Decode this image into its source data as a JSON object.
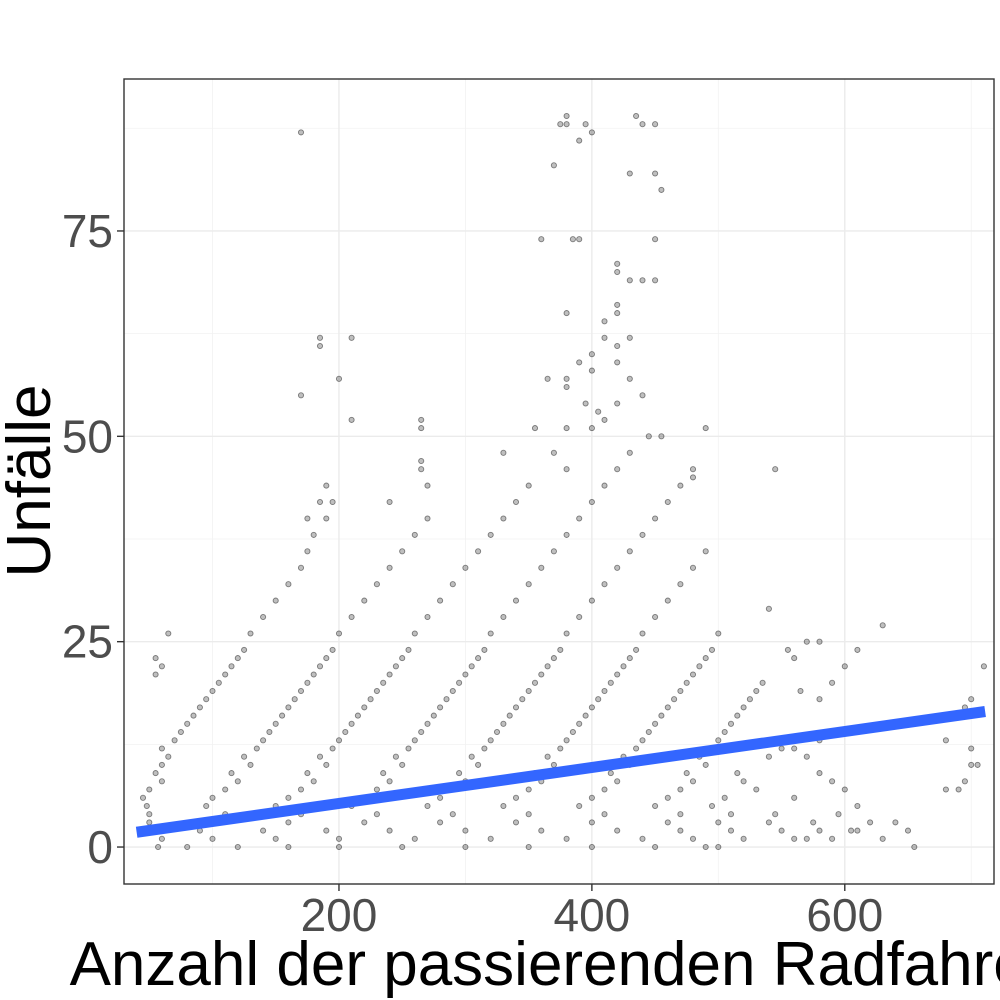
{
  "chart_data": {
    "type": "scatter",
    "xlabel": "Anzahl der passierenden Radfahrer",
    "ylabel": "Unfälle",
    "xlim": [
      30,
      718
    ],
    "ylim": [
      -4.5,
      93.5
    ],
    "x_ticks": [
      200,
      400,
      600
    ],
    "y_ticks": [
      0,
      25,
      50,
      75
    ],
    "grid": true,
    "point_color": "#000000",
    "point_alpha": 0.25,
    "trend": {
      "x": [
        40,
        711
      ],
      "y": [
        1.8,
        16.5
      ],
      "color": "#3366ff"
    },
    "points": [
      [
        57,
        0
      ],
      [
        80,
        0
      ],
      [
        120,
        0
      ],
      [
        160,
        0
      ],
      [
        200,
        0
      ],
      [
        250,
        0
      ],
      [
        300,
        0
      ],
      [
        350,
        0
      ],
      [
        400,
        0
      ],
      [
        450,
        0
      ],
      [
        490,
        0
      ],
      [
        500,
        0
      ],
      [
        60,
        1
      ],
      [
        100,
        1
      ],
      [
        150,
        1
      ],
      [
        200,
        1
      ],
      [
        260,
        1
      ],
      [
        320,
        1
      ],
      [
        380,
        1
      ],
      [
        440,
        1
      ],
      [
        480,
        1
      ],
      [
        520,
        1
      ],
      [
        560,
        1
      ],
      [
        570,
        1
      ],
      [
        55,
        2
      ],
      [
        90,
        2
      ],
      [
        140,
        2
      ],
      [
        190,
        2
      ],
      [
        240,
        2
      ],
      [
        300,
        2
      ],
      [
        360,
        2
      ],
      [
        420,
        2
      ],
      [
        470,
        2
      ],
      [
        510,
        2
      ],
      [
        550,
        2
      ],
      [
        580,
        2
      ],
      [
        50,
        3
      ],
      [
        100,
        3
      ],
      [
        160,
        3
      ],
      [
        220,
        3
      ],
      [
        280,
        3
      ],
      [
        340,
        3
      ],
      [
        400,
        3
      ],
      [
        460,
        3
      ],
      [
        500,
        3
      ],
      [
        540,
        3
      ],
      [
        575,
        3
      ],
      [
        50,
        4
      ],
      [
        110,
        4
      ],
      [
        170,
        4
      ],
      [
        230,
        4
      ],
      [
        290,
        4
      ],
      [
        350,
        4
      ],
      [
        410,
        4
      ],
      [
        470,
        4
      ],
      [
        510,
        4
      ],
      [
        545,
        4
      ],
      [
        48,
        5
      ],
      [
        95,
        5
      ],
      [
        150,
        5
      ],
      [
        210,
        5
      ],
      [
        270,
        5
      ],
      [
        330,
        5
      ],
      [
        390,
        5
      ],
      [
        450,
        5
      ],
      [
        495,
        5
      ],
      [
        45,
        6
      ],
      [
        100,
        6
      ],
      [
        160,
        6
      ],
      [
        220,
        6
      ],
      [
        280,
        6
      ],
      [
        340,
        6
      ],
      [
        400,
        6
      ],
      [
        460,
        6
      ],
      [
        505,
        6
      ],
      [
        560,
        6
      ],
      [
        50,
        7
      ],
      [
        110,
        7
      ],
      [
        170,
        7
      ],
      [
        230,
        7
      ],
      [
        290,
        7
      ],
      [
        350,
        7
      ],
      [
        410,
        7
      ],
      [
        470,
        7
      ],
      [
        530,
        7
      ],
      [
        680,
        7
      ],
      [
        695,
        8
      ],
      [
        60,
        8
      ],
      [
        120,
        8
      ],
      [
        180,
        8
      ],
      [
        240,
        8
      ],
      [
        300,
        8
      ],
      [
        360,
        8
      ],
      [
        420,
        8
      ],
      [
        480,
        8
      ],
      [
        520,
        8
      ],
      [
        55,
        9
      ],
      [
        115,
        9
      ],
      [
        175,
        9
      ],
      [
        235,
        9
      ],
      [
        295,
        9
      ],
      [
        355,
        9
      ],
      [
        415,
        9
      ],
      [
        475,
        9
      ],
      [
        515,
        9
      ],
      [
        60,
        10
      ],
      [
        130,
        10
      ],
      [
        190,
        10
      ],
      [
        250,
        10
      ],
      [
        310,
        10
      ],
      [
        370,
        10
      ],
      [
        430,
        10
      ],
      [
        490,
        10
      ],
      [
        700,
        10
      ],
      [
        65,
        11
      ],
      [
        125,
        11
      ],
      [
        185,
        11
      ],
      [
        245,
        11
      ],
      [
        305,
        11
      ],
      [
        365,
        11
      ],
      [
        425,
        11
      ],
      [
        485,
        11
      ],
      [
        540,
        11
      ],
      [
        60,
        12
      ],
      [
        135,
        12
      ],
      [
        195,
        12
      ],
      [
        255,
        12
      ],
      [
        315,
        12
      ],
      [
        375,
        12
      ],
      [
        435,
        12
      ],
      [
        495,
        12
      ],
      [
        560,
        12
      ],
      [
        70,
        13
      ],
      [
        140,
        13
      ],
      [
        200,
        13
      ],
      [
        260,
        13
      ],
      [
        320,
        13
      ],
      [
        380,
        13
      ],
      [
        440,
        13
      ],
      [
        500,
        13
      ],
      [
        580,
        13
      ],
      [
        75,
        14
      ],
      [
        145,
        14
      ],
      [
        205,
        14
      ],
      [
        265,
        14
      ],
      [
        325,
        14
      ],
      [
        385,
        14
      ],
      [
        445,
        14
      ],
      [
        505,
        14
      ],
      [
        600,
        14
      ],
      [
        80,
        15
      ],
      [
        150,
        15
      ],
      [
        210,
        15
      ],
      [
        270,
        15
      ],
      [
        330,
        15
      ],
      [
        390,
        15
      ],
      [
        450,
        15
      ],
      [
        510,
        15
      ],
      [
        650,
        15
      ],
      [
        85,
        16
      ],
      [
        155,
        16
      ],
      [
        215,
        16
      ],
      [
        275,
        16
      ],
      [
        335,
        16
      ],
      [
        395,
        16
      ],
      [
        455,
        16
      ],
      [
        515,
        16
      ],
      [
        690,
        16
      ],
      [
        90,
        17
      ],
      [
        160,
        17
      ],
      [
        220,
        17
      ],
      [
        280,
        17
      ],
      [
        340,
        17
      ],
      [
        400,
        17
      ],
      [
        460,
        17
      ],
      [
        520,
        17
      ],
      [
        695,
        17
      ],
      [
        95,
        18
      ],
      [
        165,
        18
      ],
      [
        225,
        18
      ],
      [
        285,
        18
      ],
      [
        345,
        18
      ],
      [
        405,
        18
      ],
      [
        465,
        18
      ],
      [
        525,
        18
      ],
      [
        700,
        18
      ],
      [
        100,
        19
      ],
      [
        170,
        19
      ],
      [
        230,
        19
      ],
      [
        290,
        19
      ],
      [
        350,
        19
      ],
      [
        410,
        19
      ],
      [
        470,
        19
      ],
      [
        530,
        19
      ],
      [
        105,
        20
      ],
      [
        175,
        20
      ],
      [
        235,
        20
      ],
      [
        295,
        20
      ],
      [
        355,
        20
      ],
      [
        415,
        20
      ],
      [
        475,
        20
      ],
      [
        535,
        20
      ],
      [
        55,
        21
      ],
      [
        110,
        21
      ],
      [
        180,
        21
      ],
      [
        240,
        21
      ],
      [
        300,
        21
      ],
      [
        360,
        21
      ],
      [
        420,
        21
      ],
      [
        480,
        21
      ],
      [
        60,
        22
      ],
      [
        115,
        22
      ],
      [
        185,
        22
      ],
      [
        245,
        22
      ],
      [
        305,
        22
      ],
      [
        365,
        22
      ],
      [
        425,
        22
      ],
      [
        485,
        22
      ],
      [
        710,
        22
      ],
      [
        55,
        23
      ],
      [
        120,
        23
      ],
      [
        190,
        23
      ],
      [
        250,
        23
      ],
      [
        310,
        23
      ],
      [
        370,
        23
      ],
      [
        430,
        23
      ],
      [
        490,
        23
      ],
      [
        125,
        24
      ],
      [
        195,
        24
      ],
      [
        255,
        24
      ],
      [
        315,
        24
      ],
      [
        375,
        24
      ],
      [
        435,
        24
      ],
      [
        495,
        24
      ],
      [
        610,
        24
      ],
      [
        65,
        26
      ],
      [
        130,
        26
      ],
      [
        200,
        26
      ],
      [
        260,
        26
      ],
      [
        320,
        26
      ],
      [
        380,
        26
      ],
      [
        440,
        26
      ],
      [
        500,
        26
      ],
      [
        630,
        27
      ],
      [
        140,
        28
      ],
      [
        210,
        28
      ],
      [
        270,
        28
      ],
      [
        330,
        28
      ],
      [
        390,
        28
      ],
      [
        450,
        28
      ],
      [
        150,
        30
      ],
      [
        220,
        30
      ],
      [
        280,
        30
      ],
      [
        340,
        30
      ],
      [
        400,
        30
      ],
      [
        460,
        30
      ],
      [
        160,
        32
      ],
      [
        230,
        32
      ],
      [
        290,
        32
      ],
      [
        350,
        32
      ],
      [
        410,
        32
      ],
      [
        470,
        32
      ],
      [
        170,
        34
      ],
      [
        240,
        34
      ],
      [
        300,
        34
      ],
      [
        360,
        34
      ],
      [
        420,
        34
      ],
      [
        480,
        34
      ],
      [
        175,
        36
      ],
      [
        250,
        36
      ],
      [
        310,
        36
      ],
      [
        370,
        36
      ],
      [
        430,
        36
      ],
      [
        490,
        36
      ],
      [
        180,
        38
      ],
      [
        260,
        38
      ],
      [
        320,
        38
      ],
      [
        380,
        38
      ],
      [
        440,
        38
      ],
      [
        175,
        40
      ],
      [
        190,
        40
      ],
      [
        270,
        40
      ],
      [
        330,
        40
      ],
      [
        390,
        40
      ],
      [
        450,
        40
      ],
      [
        185,
        42
      ],
      [
        195,
        42
      ],
      [
        240,
        42
      ],
      [
        340,
        42
      ],
      [
        400,
        42
      ],
      [
        460,
        42
      ],
      [
        190,
        44
      ],
      [
        270,
        44
      ],
      [
        350,
        44
      ],
      [
        410,
        44
      ],
      [
        470,
        44
      ],
      [
        265,
        46
      ],
      [
        265,
        47
      ],
      [
        380,
        46
      ],
      [
        420,
        46
      ],
      [
        480,
        46
      ],
      [
        545,
        46
      ],
      [
        330,
        48
      ],
      [
        370,
        48
      ],
      [
        430,
        48
      ],
      [
        480,
        45
      ],
      [
        210,
        52
      ],
      [
        265,
        52
      ],
      [
        265,
        51
      ],
      [
        355,
        51
      ],
      [
        380,
        51
      ],
      [
        400,
        51
      ],
      [
        445,
        50
      ],
      [
        455,
        50
      ],
      [
        490,
        51
      ],
      [
        170,
        55
      ],
      [
        395,
        54
      ],
      [
        405,
        53
      ],
      [
        410,
        52
      ],
      [
        420,
        54
      ],
      [
        365,
        57
      ],
      [
        380,
        57
      ],
      [
        400,
        58
      ],
      [
        430,
        57
      ],
      [
        200,
        57
      ],
      [
        390,
        59
      ],
      [
        420,
        59
      ],
      [
        380,
        56
      ],
      [
        440,
        55
      ],
      [
        185,
        61
      ],
      [
        185,
        62
      ],
      [
        210,
        62
      ],
      [
        400,
        60
      ],
      [
        410,
        62
      ],
      [
        420,
        61
      ],
      [
        430,
        62
      ],
      [
        380,
        65
      ],
      [
        410,
        64
      ],
      [
        420,
        66
      ],
      [
        420,
        65
      ],
      [
        360,
        74
      ],
      [
        385,
        74
      ],
      [
        390,
        74
      ],
      [
        420,
        70
      ],
      [
        420,
        71
      ],
      [
        430,
        69
      ],
      [
        440,
        69
      ],
      [
        450,
        69
      ],
      [
        450,
        74
      ],
      [
        170,
        87
      ],
      [
        370,
        83
      ],
      [
        375,
        88
      ],
      [
        380,
        88
      ],
      [
        380,
        89
      ],
      [
        390,
        86
      ],
      [
        395,
        88
      ],
      [
        400,
        87
      ],
      [
        430,
        82
      ],
      [
        435,
        89
      ],
      [
        440,
        88
      ],
      [
        450,
        82
      ],
      [
        450,
        88
      ],
      [
        455,
        80
      ],
      [
        540,
        29
      ],
      [
        555,
        24
      ],
      [
        560,
        23
      ],
      [
        570,
        25
      ],
      [
        580,
        25
      ],
      [
        600,
        22
      ],
      [
        590,
        20
      ],
      [
        580,
        18
      ],
      [
        565,
        19
      ],
      [
        560,
        13
      ],
      [
        550,
        12
      ],
      [
        570,
        11
      ],
      [
        580,
        9
      ],
      [
        590,
        8
      ],
      [
        600,
        7
      ],
      [
        610,
        5
      ],
      [
        620,
        3
      ],
      [
        605,
        2
      ],
      [
        590,
        1
      ],
      [
        595,
        4
      ],
      [
        610,
        2
      ],
      [
        650,
        2
      ],
      [
        655,
        0
      ],
      [
        640,
        3
      ],
      [
        630,
        1
      ],
      [
        680,
        13
      ],
      [
        700,
        12
      ],
      [
        705,
        10
      ],
      [
        690,
        7
      ]
    ]
  }
}
